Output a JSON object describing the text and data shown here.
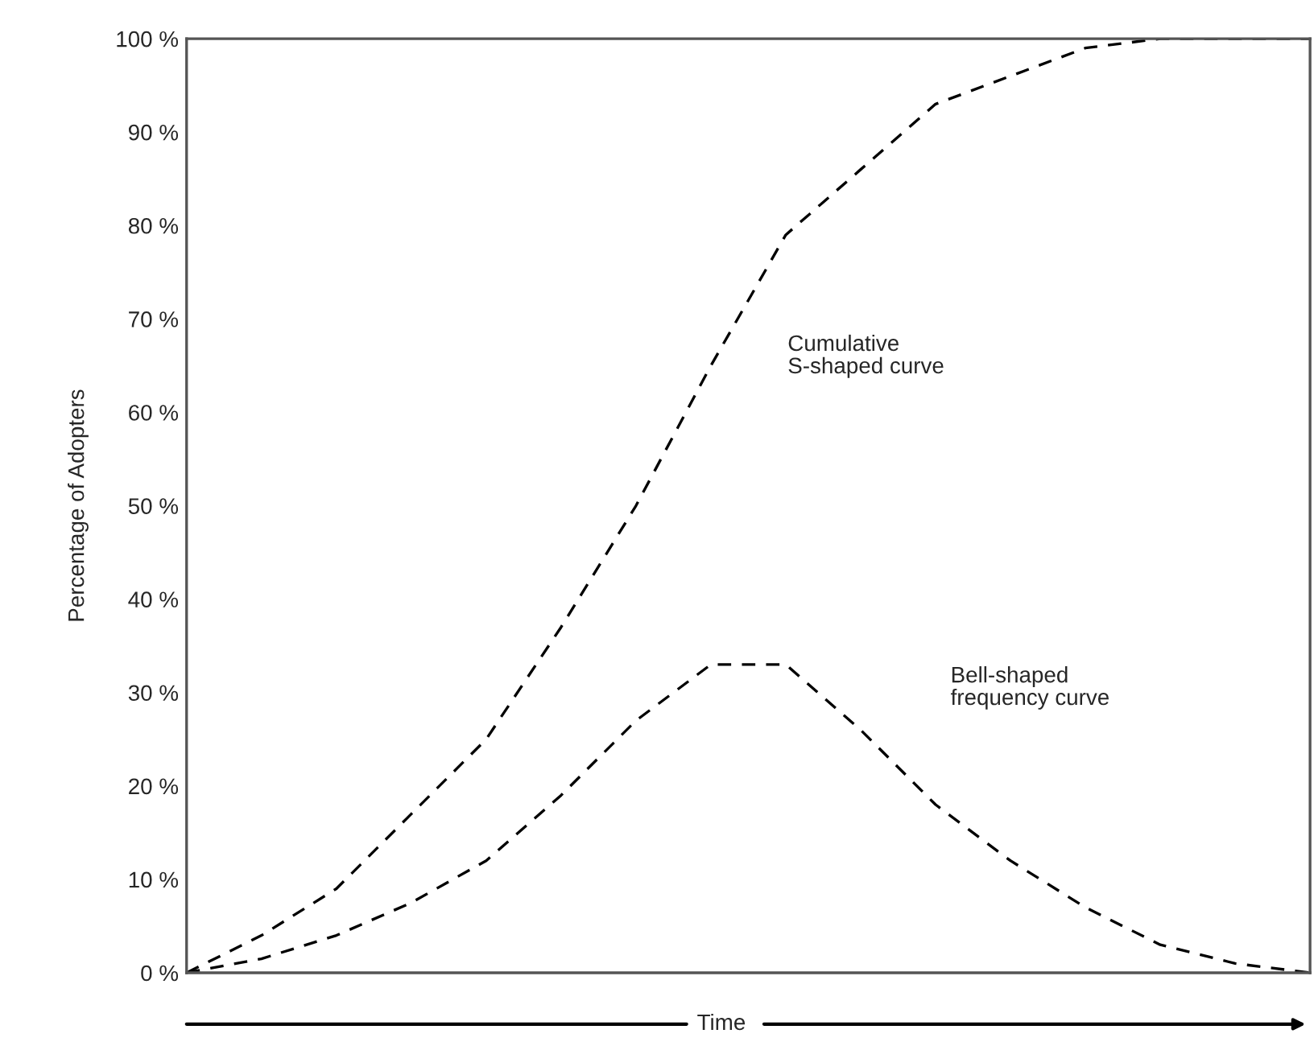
{
  "chart_data": {
    "type": "line",
    "ylabel": "Percentage of Adopters",
    "xlabel": "Time",
    "categories": [
      null,
      null,
      null,
      null,
      null,
      null,
      null,
      null,
      null,
      null,
      null,
      null,
      null,
      null,
      null,
      null
    ],
    "series": [
      {
        "color": "#000000",
        "values": [
          0,
          4,
          9,
          17,
          25,
          37,
          50,
          65,
          79,
          86,
          93,
          96,
          99,
          100,
          100,
          100
        ]
      },
      {
        "color": "#000000",
        "values": [
          0,
          1.5,
          4,
          7.5,
          12,
          19,
          27,
          33,
          33,
          26,
          18,
          12,
          7,
          3,
          1,
          0
        ]
      }
    ],
    "ylim": [
      0,
      100
    ],
    "yticks": [
      {
        "value": 0,
        "label": "0 %"
      },
      {
        "value": 10,
        "label": "10 %"
      },
      {
        "value": 20,
        "label": "20 %"
      },
      {
        "value": 30,
        "label": "30 %"
      },
      {
        "value": 40,
        "label": "40 %"
      },
      {
        "value": 50,
        "label": "50 %"
      },
      {
        "value": 60,
        "label": "60 %"
      },
      {
        "value": 70,
        "label": "70 %"
      },
      {
        "value": 80,
        "label": "80 %"
      },
      {
        "value": 90,
        "label": "90 %"
      },
      {
        "value": 100,
        "label": "100 %"
      }
    ],
    "annotations": [
      "Cumulative\nS-shaped curve",
      "Bell-shaped\nfrequency curve"
    ],
    "grid": false,
    "legend": false,
    "marker": "none",
    "line_style": "dashed"
  }
}
